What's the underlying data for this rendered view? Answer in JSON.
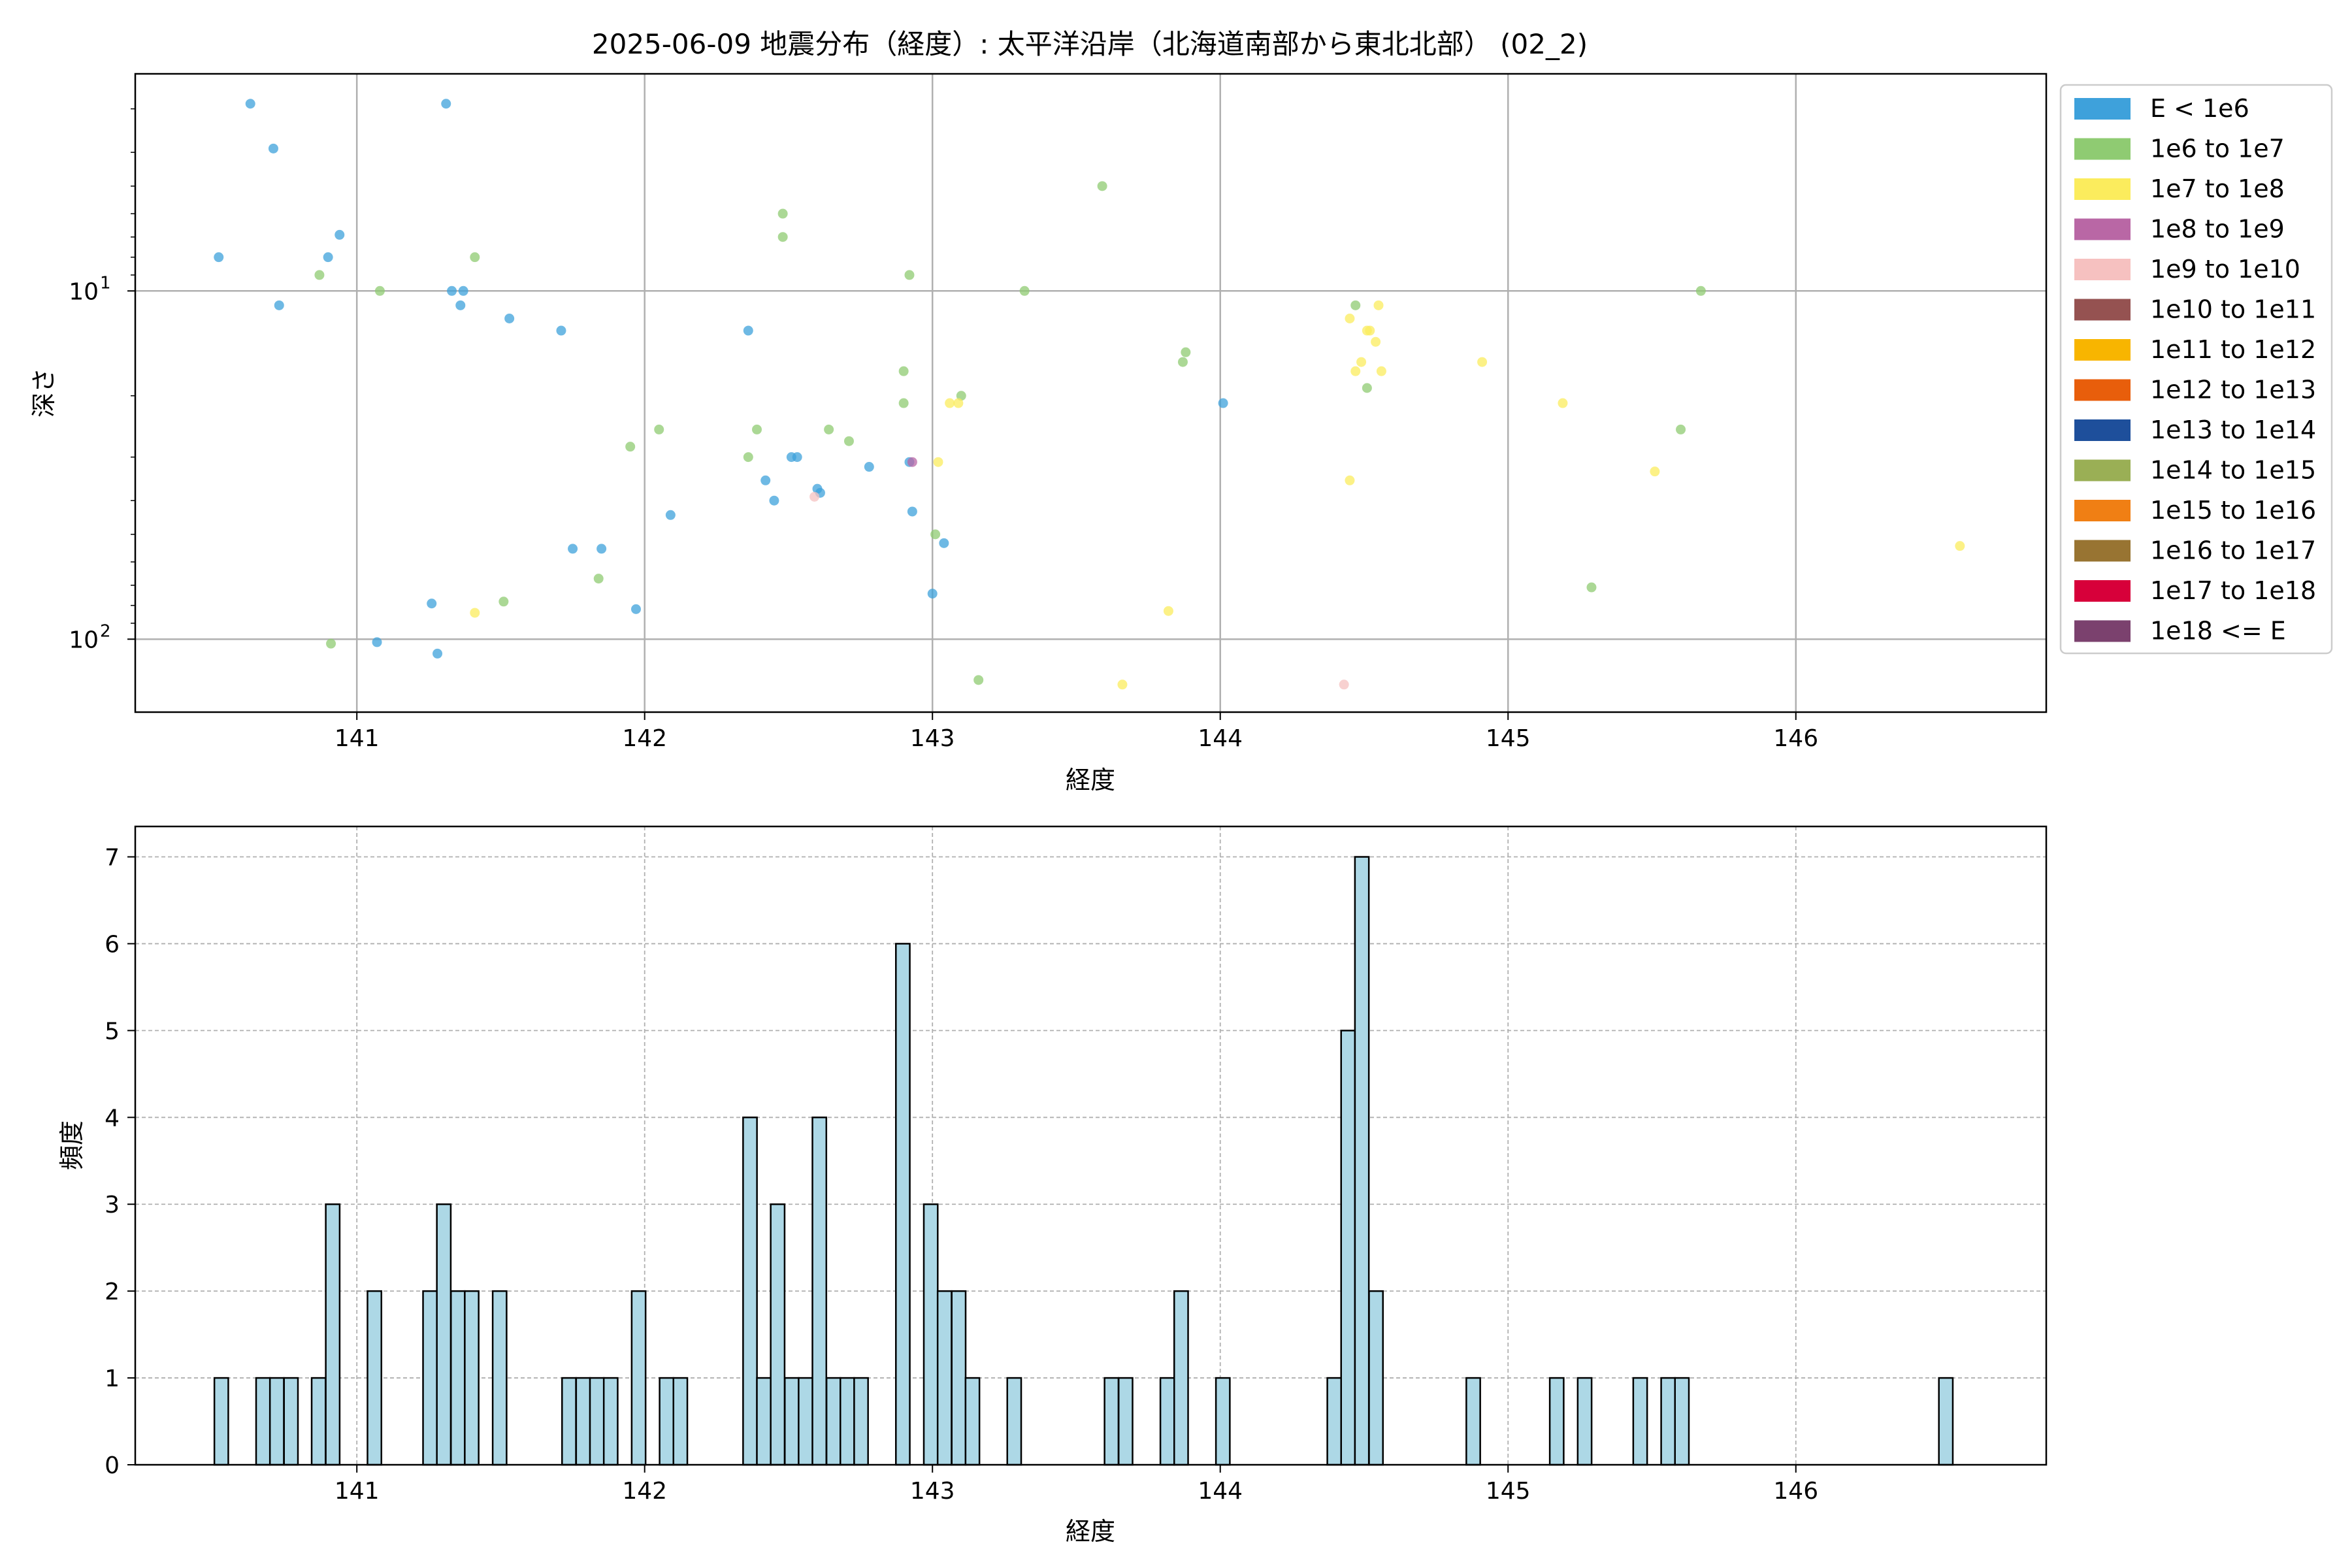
{
  "title": "2025-06-09 地震分布（経度）: 太平洋沿岸（北海道南部から東北北部） (02_2)",
  "top_xlabel": "経度",
  "top_ylabel": "深さ",
  "bottom_xlabel": "経度",
  "bottom_ylabel": "頻度",
  "chart_data": [
    {
      "type": "scatter",
      "xlabel": "経度",
      "ylabel": "深さ",
      "xlim": [
        140.23,
        146.87
      ],
      "ylim": [
        162,
        2.38
      ],
      "yscale": "log",
      "yaxis_inverted": true,
      "xticks": [
        141,
        142,
        143,
        144,
        145,
        146
      ],
      "yticks": [
        {
          "value": 10,
          "label": "10",
          "sup": "1"
        },
        {
          "value": 100,
          "label": "10",
          "sup": "2"
        }
      ],
      "grid": true,
      "legend_position": "outside-right",
      "legend": [
        {
          "label": "E < 1e6",
          "color": "#3ea1db"
        },
        {
          "label": "1e6 to 1e7",
          "color": "#8fcb72"
        },
        {
          "label": "1e7 to 1e8",
          "color": "#fbec5d"
        },
        {
          "label": "1e8 to 1e9",
          "color": "#b967a5"
        },
        {
          "label": "1e9 to 1e10",
          "color": "#f6c1c0"
        },
        {
          "label": "1e10 to 1e11",
          "color": "#955251"
        },
        {
          "label": "1e11 to 1e12",
          "color": "#f8b500"
        },
        {
          "label": "1e12 to 1e13",
          "color": "#e85e0b"
        },
        {
          "label": "1e13 to 1e14",
          "color": "#1e4f9b"
        },
        {
          "label": "1e14 to 1e15",
          "color": "#9aaf55"
        },
        {
          "label": "1e15 to 1e16",
          "color": "#f07f14"
        },
        {
          "label": "1e16 to 1e17",
          "color": "#987432"
        },
        {
          "label": "1e17 to 1e18",
          "color": "#d7003a"
        },
        {
          "label": "1e18 <= E",
          "color": "#7b416e"
        }
      ],
      "series": [
        {
          "name": "E < 1e6",
          "color": "#3ea1db",
          "points": [
            [
              140.52,
              8
            ],
            [
              140.63,
              2.9
            ],
            [
              140.71,
              3.9
            ],
            [
              140.73,
              11
            ],
            [
              140.9,
              8
            ],
            [
              140.94,
              6.9
            ],
            [
              141.07,
              102
            ],
            [
              141.26,
              79
            ],
            [
              141.28,
              110
            ],
            [
              141.31,
              2.9
            ],
            [
              141.33,
              10
            ],
            [
              141.36,
              11
            ],
            [
              141.37,
              10
            ],
            [
              141.53,
              12
            ],
            [
              141.71,
              13
            ],
            [
              141.75,
              55
            ],
            [
              141.85,
              55
            ],
            [
              141.97,
              82
            ],
            [
              142.09,
              44
            ],
            [
              142.36,
              13
            ],
            [
              142.42,
              35
            ],
            [
              142.45,
              40
            ],
            [
              142.51,
              30
            ],
            [
              142.53,
              30
            ],
            [
              142.6,
              37
            ],
            [
              142.61,
              38
            ],
            [
              142.78,
              32
            ],
            [
              142.92,
              31
            ],
            [
              142.93,
              43
            ],
            [
              143.0,
              74
            ],
            [
              143.04,
              53
            ],
            [
              144.01,
              21
            ]
          ]
        },
        {
          "name": "1e6 to 1e7",
          "color": "#8fcb72",
          "points": [
            [
              140.87,
              9
            ],
            [
              140.91,
              103
            ],
            [
              141.08,
              10
            ],
            [
              141.41,
              8
            ],
            [
              141.51,
              78
            ],
            [
              141.84,
              67
            ],
            [
              141.95,
              28
            ],
            [
              142.05,
              25
            ],
            [
              142.36,
              30
            ],
            [
              142.39,
              25
            ],
            [
              142.48,
              6
            ],
            [
              142.48,
              7
            ],
            [
              142.64,
              25
            ],
            [
              142.71,
              27
            ],
            [
              142.9,
              21
            ],
            [
              142.9,
              17
            ],
            [
              142.92,
              9
            ],
            [
              143.01,
              50
            ],
            [
              143.1,
              20
            ],
            [
              143.16,
              131
            ],
            [
              143.32,
              10
            ],
            [
              143.59,
              5
            ],
            [
              143.87,
              16
            ],
            [
              143.88,
              15
            ],
            [
              144.47,
              11
            ],
            [
              144.51,
              19
            ],
            [
              145.29,
              71
            ],
            [
              145.6,
              25
            ],
            [
              145.67,
              10
            ]
          ]
        },
        {
          "name": "1e7 to 1e8",
          "color": "#fbec5d",
          "points": [
            [
              141.41,
              84
            ],
            [
              143.02,
              31
            ],
            [
              143.06,
              21
            ],
            [
              143.09,
              21
            ],
            [
              143.66,
              135
            ],
            [
              143.82,
              83
            ],
            [
              144.45,
              12
            ],
            [
              144.45,
              35
            ],
            [
              144.47,
              17
            ],
            [
              144.49,
              16
            ],
            [
              144.51,
              13
            ],
            [
              144.52,
              13
            ],
            [
              144.54,
              14
            ],
            [
              144.55,
              11
            ],
            [
              144.56,
              17
            ],
            [
              144.91,
              16
            ],
            [
              145.19,
              21
            ],
            [
              145.51,
              33
            ],
            [
              146.57,
              54
            ]
          ]
        },
        {
          "name": "1e8 to 1e9",
          "color": "#b967a5",
          "points": [
            [
              142.93,
              31
            ]
          ]
        },
        {
          "name": "1e9 to 1e10",
          "color": "#f6c1c0",
          "points": [
            [
              142.59,
              39
            ],
            [
              144.43,
              135
            ]
          ]
        }
      ]
    },
    {
      "type": "bar",
      "subtype": "histogram",
      "xlabel": "経度",
      "ylabel": "頻度",
      "xlim": [
        140.23,
        146.87
      ],
      "ylim": [
        0,
        7.35
      ],
      "xticks": [
        141,
        142,
        143,
        144,
        145,
        146
      ],
      "yticks": [
        0,
        1,
        2,
        3,
        4,
        5,
        6,
        7
      ],
      "grid": true,
      "bin_width": 0.0483,
      "bar_color": "#add8e6",
      "bins": [
        [
          140.505,
          1
        ],
        [
          140.65,
          1
        ],
        [
          140.698,
          1
        ],
        [
          140.747,
          1
        ],
        [
          140.843,
          1
        ],
        [
          140.892,
          3
        ],
        [
          141.037,
          2
        ],
        [
          141.23,
          2
        ],
        [
          141.278,
          3
        ],
        [
          141.327,
          2
        ],
        [
          141.375,
          2
        ],
        [
          141.472,
          2
        ],
        [
          141.713,
          1
        ],
        [
          141.762,
          1
        ],
        [
          141.81,
          1
        ],
        [
          141.858,
          1
        ],
        [
          141.955,
          2
        ],
        [
          142.052,
          1
        ],
        [
          142.1,
          1
        ],
        [
          142.342,
          4
        ],
        [
          142.39,
          1
        ],
        [
          142.438,
          3
        ],
        [
          142.487,
          1
        ],
        [
          142.535,
          1
        ],
        [
          142.583,
          4
        ],
        [
          142.632,
          1
        ],
        [
          142.68,
          1
        ],
        [
          142.728,
          1
        ],
        [
          142.873,
          6
        ],
        [
          142.97,
          3
        ],
        [
          143.018,
          2
        ],
        [
          143.067,
          2
        ],
        [
          143.115,
          1
        ],
        [
          143.26,
          1
        ],
        [
          143.598,
          1
        ],
        [
          143.647,
          1
        ],
        [
          143.792,
          1
        ],
        [
          143.84,
          2
        ],
        [
          143.985,
          1
        ],
        [
          144.372,
          1
        ],
        [
          144.42,
          5
        ],
        [
          144.468,
          7
        ],
        [
          144.517,
          2
        ],
        [
          144.855,
          1
        ],
        [
          145.145,
          1
        ],
        [
          145.242,
          1
        ],
        [
          145.435,
          1
        ],
        [
          145.532,
          1
        ],
        [
          145.58,
          1
        ],
        [
          146.497,
          1
        ]
      ]
    }
  ]
}
